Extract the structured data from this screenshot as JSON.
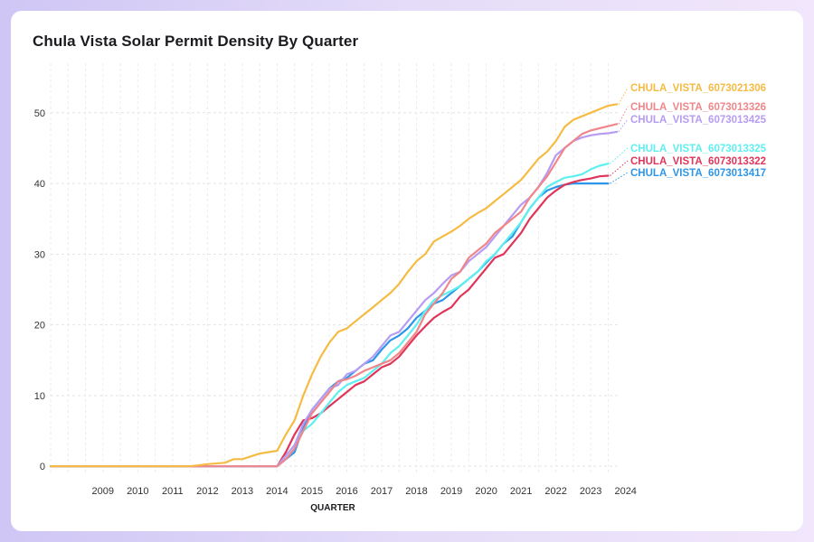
{
  "chart_data": {
    "type": "line",
    "title": "Chula Vista Solar Permit Density By Quarter",
    "xlabel": "QUARTER",
    "ylabel": "",
    "x_ticks": [
      "2009",
      "2010",
      "2011",
      "2012",
      "2013",
      "2014",
      "2015",
      "2016",
      "2017",
      "2018",
      "2019",
      "2020",
      "2021",
      "2022",
      "2023",
      "2024"
    ],
    "y_ticks": [
      0,
      10,
      20,
      30,
      40,
      50
    ],
    "xlim": [
      2008.0,
      2024.3
    ],
    "ylim": [
      -1,
      57
    ],
    "grid": true,
    "legend": "direct labels at right end of lines",
    "series": [
      {
        "name": "CHULA_VISTA_6073021306",
        "color": "#f5bb42",
        "points": [
          [
            2008.0,
            0
          ],
          [
            2012.0,
            0
          ],
          [
            2012.5,
            0.3
          ],
          [
            2013.0,
            0.5
          ],
          [
            2013.25,
            1.0
          ],
          [
            2013.5,
            1.0
          ],
          [
            2014.0,
            1.8
          ],
          [
            2014.5,
            2.2
          ],
          [
            2014.75,
            4.5
          ],
          [
            2015.0,
            6.5
          ],
          [
            2015.25,
            10
          ],
          [
            2015.5,
            13
          ],
          [
            2015.75,
            15.5
          ],
          [
            2016.0,
            17.5
          ],
          [
            2016.25,
            19
          ],
          [
            2016.5,
            19.5
          ],
          [
            2016.75,
            20.5
          ],
          [
            2017.0,
            21.5
          ],
          [
            2017.25,
            22.5
          ],
          [
            2017.5,
            23.5
          ],
          [
            2017.75,
            24.5
          ],
          [
            2018.0,
            25.8
          ],
          [
            2018.25,
            27.5
          ],
          [
            2018.5,
            29
          ],
          [
            2018.75,
            30
          ],
          [
            2019.0,
            31.8
          ],
          [
            2019.25,
            32.5
          ],
          [
            2019.5,
            33.2
          ],
          [
            2019.75,
            34
          ],
          [
            2020.0,
            35
          ],
          [
            2020.25,
            35.8
          ],
          [
            2020.5,
            36.5
          ],
          [
            2020.75,
            37.5
          ],
          [
            2021.0,
            38.5
          ],
          [
            2021.25,
            39.5
          ],
          [
            2021.5,
            40.5
          ],
          [
            2021.75,
            42
          ],
          [
            2022.0,
            43.5
          ],
          [
            2022.25,
            44.5
          ],
          [
            2022.5,
            46
          ],
          [
            2022.75,
            48
          ],
          [
            2023.0,
            49
          ],
          [
            2023.25,
            49.5
          ],
          [
            2023.5,
            50
          ],
          [
            2023.75,
            50.5
          ],
          [
            2024.0,
            51
          ],
          [
            2024.25,
            51.2
          ]
        ]
      },
      {
        "name": "CHULA_VISTA_6073013326",
        "color": "#f0868a",
        "points": [
          [
            2008.0,
            0
          ],
          [
            2014.5,
            0
          ],
          [
            2014.75,
            1.0
          ],
          [
            2015.0,
            2.5
          ],
          [
            2015.25,
            5
          ],
          [
            2015.5,
            7.5
          ],
          [
            2015.75,
            9
          ],
          [
            2016.0,
            10.5
          ],
          [
            2016.25,
            12
          ],
          [
            2016.5,
            12.3
          ],
          [
            2016.75,
            12.8
          ],
          [
            2017.0,
            13.5
          ],
          [
            2017.25,
            14
          ],
          [
            2017.5,
            14.5
          ],
          [
            2017.75,
            15
          ],
          [
            2018.0,
            16
          ],
          [
            2018.25,
            17.5
          ],
          [
            2018.5,
            19
          ],
          [
            2018.75,
            21.5
          ],
          [
            2019.0,
            23
          ],
          [
            2019.25,
            24.5
          ],
          [
            2019.5,
            26.5
          ],
          [
            2019.75,
            27.5
          ],
          [
            2020.0,
            29.5
          ],
          [
            2020.25,
            30.5
          ],
          [
            2020.5,
            31.5
          ],
          [
            2020.75,
            33
          ],
          [
            2021.0,
            34
          ],
          [
            2021.25,
            35
          ],
          [
            2021.5,
            36
          ],
          [
            2021.75,
            38
          ],
          [
            2022.0,
            39.5
          ],
          [
            2022.25,
            41
          ],
          [
            2022.5,
            43
          ],
          [
            2022.75,
            45
          ],
          [
            2023.0,
            46
          ],
          [
            2023.25,
            47
          ],
          [
            2023.5,
            47.5
          ],
          [
            2023.75,
            47.8
          ],
          [
            2024.0,
            48.1
          ],
          [
            2024.25,
            48.4
          ]
        ]
      },
      {
        "name": "CHULA_VISTA_6073013425",
        "color": "#b69cf2",
        "points": [
          [
            2008.0,
            0
          ],
          [
            2014.5,
            0
          ],
          [
            2014.75,
            1.5
          ],
          [
            2015.0,
            3
          ],
          [
            2015.25,
            6
          ],
          [
            2015.5,
            8
          ],
          [
            2015.75,
            9.5
          ],
          [
            2016.0,
            11
          ],
          [
            2016.25,
            11.5
          ],
          [
            2016.5,
            13
          ],
          [
            2016.75,
            13.5
          ],
          [
            2017.0,
            14.5
          ],
          [
            2017.25,
            15.5
          ],
          [
            2017.5,
            17
          ],
          [
            2017.75,
            18.5
          ],
          [
            2018.0,
            19
          ],
          [
            2018.25,
            20.5
          ],
          [
            2018.5,
            22
          ],
          [
            2018.75,
            23.5
          ],
          [
            2019.0,
            24.5
          ],
          [
            2019.25,
            25.8
          ],
          [
            2019.5,
            27
          ],
          [
            2019.75,
            27.5
          ],
          [
            2020.0,
            29
          ],
          [
            2020.25,
            30
          ],
          [
            2020.5,
            31
          ],
          [
            2020.75,
            32.5
          ],
          [
            2021.0,
            34
          ],
          [
            2021.25,
            35.5
          ],
          [
            2021.5,
            37
          ],
          [
            2021.75,
            38
          ],
          [
            2022.0,
            39.5
          ],
          [
            2022.25,
            41.5
          ],
          [
            2022.5,
            44
          ],
          [
            2022.75,
            45
          ],
          [
            2023.0,
            46
          ],
          [
            2023.25,
            46.5
          ],
          [
            2023.5,
            46.8
          ],
          [
            2023.75,
            47
          ],
          [
            2024.0,
            47.1
          ],
          [
            2024.25,
            47.3
          ]
        ]
      },
      {
        "name": "CHULA_VISTA_6073013325",
        "color": "#5ef0f0",
        "points": [
          [
            2008.0,
            0
          ],
          [
            2014.5,
            0
          ],
          [
            2014.75,
            1.5
          ],
          [
            2015.0,
            3
          ],
          [
            2015.25,
            5
          ],
          [
            2015.5,
            6
          ],
          [
            2015.75,
            7.5
          ],
          [
            2016.0,
            9
          ],
          [
            2016.25,
            10.5
          ],
          [
            2016.5,
            11.5
          ],
          [
            2016.75,
            12
          ],
          [
            2017.0,
            12.5
          ],
          [
            2017.25,
            13.5
          ],
          [
            2017.5,
            14.5
          ],
          [
            2017.75,
            16
          ],
          [
            2018.0,
            17
          ],
          [
            2018.25,
            18.5
          ],
          [
            2018.5,
            20
          ],
          [
            2018.75,
            22
          ],
          [
            2019.0,
            23.5
          ],
          [
            2019.25,
            24.2
          ],
          [
            2019.5,
            24.8
          ],
          [
            2019.75,
            25.5
          ],
          [
            2020.0,
            26.5
          ],
          [
            2020.25,
            27.5
          ],
          [
            2020.5,
            29
          ],
          [
            2020.75,
            30
          ],
          [
            2021.0,
            31.5
          ],
          [
            2021.25,
            33
          ],
          [
            2021.5,
            34.5
          ],
          [
            2021.75,
            36.5
          ],
          [
            2022.0,
            38
          ],
          [
            2022.25,
            39.5
          ],
          [
            2022.5,
            40.2
          ],
          [
            2022.75,
            40.8
          ],
          [
            2023.0,
            41
          ],
          [
            2023.25,
            41.3
          ],
          [
            2023.5,
            42
          ],
          [
            2023.75,
            42.5
          ],
          [
            2024.0,
            42.8
          ]
        ]
      },
      {
        "name": "CHULA_VISTA_6073013322",
        "color": "#e0355a",
        "points": [
          [
            2008.0,
            0
          ],
          [
            2014.5,
            0
          ],
          [
            2014.75,
            2
          ],
          [
            2015.0,
            4.5
          ],
          [
            2015.25,
            6.5
          ],
          [
            2015.5,
            6.8
          ],
          [
            2015.75,
            7.5
          ],
          [
            2016.0,
            8.5
          ],
          [
            2016.25,
            9.5
          ],
          [
            2016.5,
            10.5
          ],
          [
            2016.75,
            11.5
          ],
          [
            2017.0,
            12
          ],
          [
            2017.25,
            13
          ],
          [
            2017.5,
            14
          ],
          [
            2017.75,
            14.5
          ],
          [
            2018.0,
            15.5
          ],
          [
            2018.25,
            17
          ],
          [
            2018.5,
            18.5
          ],
          [
            2018.75,
            19.8
          ],
          [
            2019.0,
            21
          ],
          [
            2019.25,
            21.8
          ],
          [
            2019.5,
            22.5
          ],
          [
            2019.75,
            24
          ],
          [
            2020.0,
            25
          ],
          [
            2020.25,
            26.5
          ],
          [
            2020.5,
            28
          ],
          [
            2020.75,
            29.5
          ],
          [
            2021.0,
            30
          ],
          [
            2021.25,
            31.5
          ],
          [
            2021.5,
            33
          ],
          [
            2021.75,
            35
          ],
          [
            2022.0,
            36.5
          ],
          [
            2022.25,
            38
          ],
          [
            2022.5,
            39
          ],
          [
            2022.75,
            39.8
          ],
          [
            2023.0,
            40.2
          ],
          [
            2023.25,
            40.5
          ],
          [
            2023.5,
            40.7
          ],
          [
            2023.75,
            41
          ],
          [
            2024.0,
            41.1
          ]
        ]
      },
      {
        "name": "CHULA_VISTA_6073013417",
        "color": "#2e96e8",
        "points": [
          [
            2008.0,
            0
          ],
          [
            2014.5,
            0
          ],
          [
            2014.75,
            1
          ],
          [
            2015.0,
            2
          ],
          [
            2015.25,
            5.5
          ],
          [
            2015.5,
            8
          ],
          [
            2015.75,
            9.5
          ],
          [
            2016.0,
            11
          ],
          [
            2016.25,
            12
          ],
          [
            2016.5,
            12.5
          ],
          [
            2016.75,
            13.5
          ],
          [
            2017.0,
            14.5
          ],
          [
            2017.25,
            15
          ],
          [
            2017.5,
            16.5
          ],
          [
            2017.75,
            17.8
          ],
          [
            2018.0,
            18.5
          ],
          [
            2018.25,
            19.5
          ],
          [
            2018.5,
            21
          ],
          [
            2018.75,
            22
          ],
          [
            2019.0,
            23
          ],
          [
            2019.25,
            23.5
          ],
          [
            2019.5,
            24.5
          ],
          [
            2019.75,
            25.5
          ],
          [
            2020.0,
            26.5
          ],
          [
            2020.25,
            27.5
          ],
          [
            2020.5,
            28.8
          ],
          [
            2020.75,
            30
          ],
          [
            2021.0,
            31.5
          ],
          [
            2021.25,
            32.5
          ],
          [
            2021.5,
            34.5
          ],
          [
            2021.75,
            36.5
          ],
          [
            2022.0,
            38
          ],
          [
            2022.25,
            39
          ],
          [
            2022.5,
            39.5
          ],
          [
            2022.75,
            39.8
          ],
          [
            2023.0,
            40
          ],
          [
            2023.25,
            40
          ],
          [
            2023.5,
            40
          ],
          [
            2023.75,
            40
          ],
          [
            2024.0,
            40
          ]
        ]
      }
    ]
  }
}
